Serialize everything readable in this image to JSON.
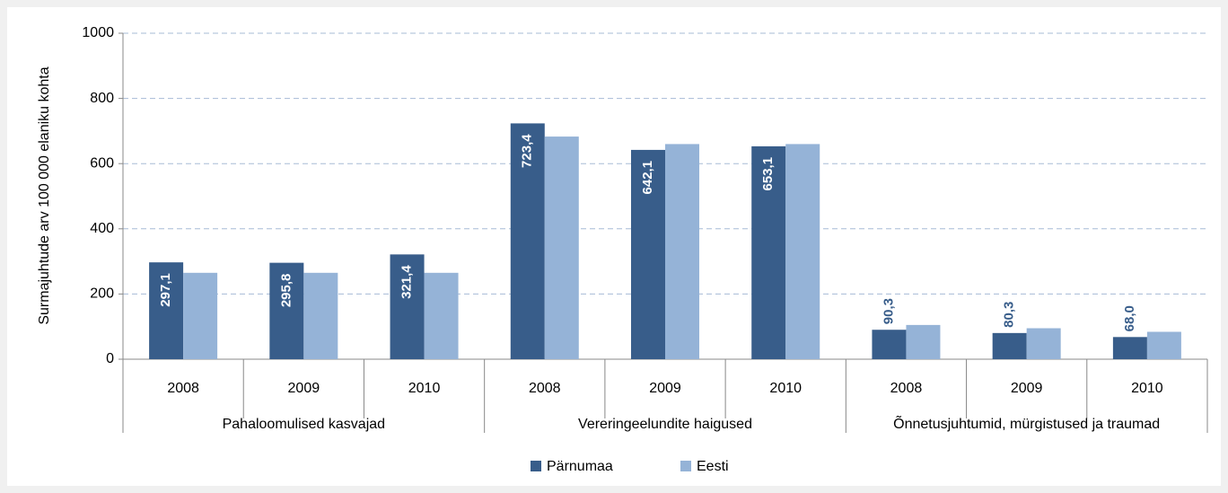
{
  "chart_data": {
    "type": "bar",
    "y_label": "Surmajuhtude arv 100 000 elaniku kohta",
    "categories": [
      "2008",
      "2009",
      "2010",
      "2008",
      "2009",
      "2010",
      "2008",
      "2009",
      "2010"
    ],
    "category_groups": [
      "Pahaloomulised kasvajad",
      "Vereringeelundite haigused",
      "Õnnetusjuhtumid, mürgistused ja traumad"
    ],
    "series": [
      {
        "name": "Pärnumaa",
        "color": "#385d8a",
        "values": [
          297.1,
          295.8,
          321.4,
          723.4,
          642.1,
          653.1,
          90.3,
          80.3,
          68.0
        ],
        "value_labels": [
          "297,1",
          "295,8",
          "321,4",
          "723,4",
          "642,1",
          "653,1",
          "90,3",
          "80,3",
          "68,0"
        ]
      },
      {
        "name": "Eesti",
        "color": "#95b3d7",
        "values": [
          265,
          265,
          265,
          683,
          660,
          660,
          105,
          95,
          84
        ]
      }
    ],
    "ylim": [
      0,
      1000
    ],
    "yticks": [
      0,
      200,
      400,
      600,
      800,
      1000
    ],
    "grid": true,
    "legend": "bottom"
  }
}
